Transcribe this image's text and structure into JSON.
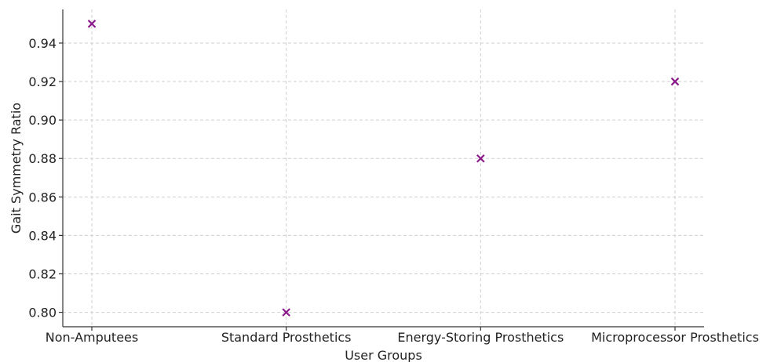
{
  "chart_data": {
    "type": "scatter",
    "title": "",
    "xlabel": "User Groups",
    "ylabel": "Gait Symmetry Ratio",
    "categories": [
      "Non-Amputees",
      "Standard Prosthetics",
      "Energy-Storing Prosthetics",
      "Microprocessor Prosthetics"
    ],
    "series": [
      {
        "values": [
          0.95,
          0.8,
          0.88,
          0.92
        ],
        "marker": "x",
        "color": "#8b1a8b"
      }
    ],
    "ylim": [
      0.7925,
      0.9575
    ],
    "yticks": [
      0.8,
      0.82,
      0.84,
      0.86,
      0.88,
      0.9,
      0.92,
      0.94
    ],
    "ytick_labels": [
      "0.80",
      "0.82",
      "0.84",
      "0.86",
      "0.88",
      "0.90",
      "0.92",
      "0.94"
    ],
    "grid": true,
    "colors": {
      "marker": "#8b1a8b",
      "grid": "#cfcfcf",
      "axis": "#333333",
      "text": "#222222"
    }
  }
}
